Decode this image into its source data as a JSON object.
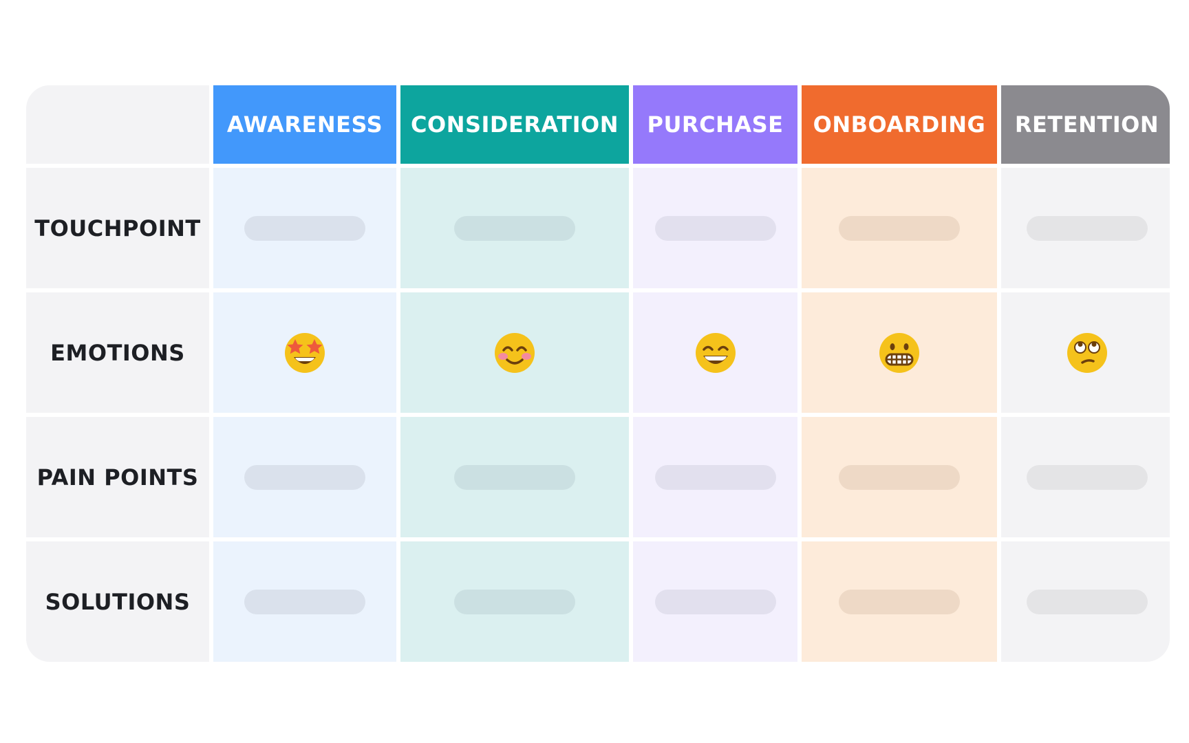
{
  "stages": [
    {
      "label": "AWARENESS",
      "header_color": "#4298fb",
      "cell_color": "#ebf3fd",
      "pill_color": "#dae1ec",
      "emoji": "star-struck-face-icon"
    },
    {
      "label": "CONSIDERATION",
      "header_color": "#0da59e",
      "cell_color": "#dbf0f0",
      "pill_color": "#cbe0e2",
      "emoji": "smiling-face-blushing-icon"
    },
    {
      "label": "PURCHASE",
      "header_color": "#9579fb",
      "cell_color": "#f3f0fd",
      "pill_color": "#e2e0ee",
      "emoji": "grinning-smiling-eyes-icon"
    },
    {
      "label": "ONBOARDING",
      "header_color": "#f06b2e",
      "cell_color": "#fdebda",
      "pill_color": "#eed9c6",
      "emoji": "grimacing-face-icon"
    },
    {
      "label": "RETENTION",
      "header_color": "#8b8a8f",
      "cell_color": "#f3f3f5",
      "pill_color": "#e4e4e6",
      "emoji": "eye-roll-face-icon"
    }
  ],
  "rows": [
    {
      "label": "TOUCHPOINT",
      "kind": "pill"
    },
    {
      "label": "EMOTIONS",
      "kind": "emoji"
    },
    {
      "label": "PAIN POINTS",
      "kind": "pill"
    },
    {
      "label": "SOLUTIONS",
      "kind": "pill"
    }
  ]
}
